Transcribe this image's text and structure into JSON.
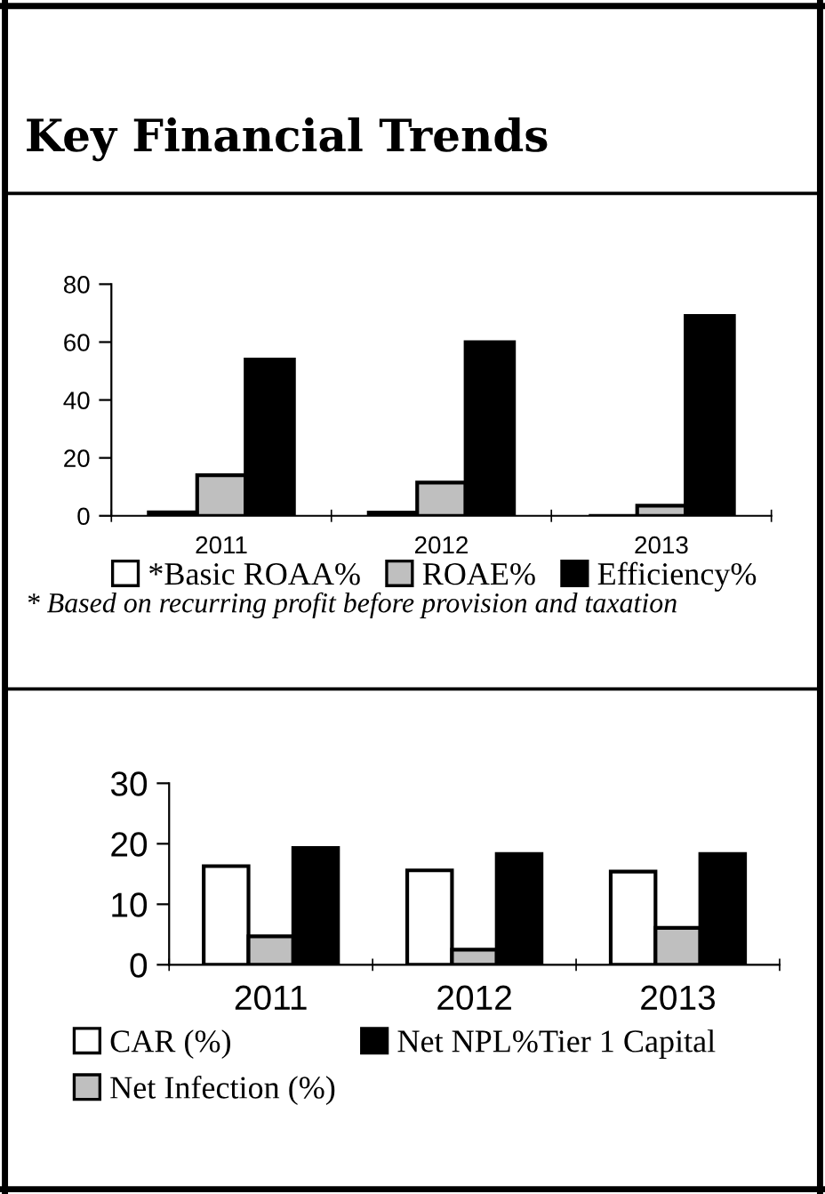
{
  "chart_data": [
    {
      "type": "bar",
      "title": "Key Financial Trends",
      "categories": [
        "2011",
        "2012",
        "2013"
      ],
      "series": [
        {
          "name": "*Basic ROAA%",
          "color": "#ffffff",
          "values": [
            1.2,
            1.1,
            null
          ]
        },
        {
          "name": "ROAE%",
          "color": "#bfbfbf",
          "values": [
            14,
            11.5,
            3.5
          ]
        },
        {
          "name": "Efficiency%",
          "color": "#000000",
          "values": [
            54,
            60,
            69
          ]
        }
      ],
      "ylim": [
        0,
        80
      ],
      "yticks": [
        0,
        20,
        40,
        60,
        80
      ],
      "grid": false,
      "legend": "bottom",
      "annotations": [
        "* Based on recurring profit before provision and taxation"
      ]
    },
    {
      "type": "bar",
      "categories": [
        "2011",
        "2012",
        "2013"
      ],
      "series": [
        {
          "name": "CAR (%)",
          "color": "#ffffff",
          "values": [
            16.3,
            15.6,
            15.4
          ]
        },
        {
          "name": "Net Infection (%)",
          "color": "#bfbfbf",
          "values": [
            4.7,
            2.5,
            6.1
          ]
        },
        {
          "name": "Net NPL%Tier 1 Capital",
          "color": "#000000",
          "values": [
            19.3,
            18.3,
            18.3
          ]
        }
      ],
      "ylim": [
        0,
        30
      ],
      "yticks": [
        0,
        10,
        20,
        30
      ],
      "grid": false,
      "legend": "bottom"
    }
  ]
}
